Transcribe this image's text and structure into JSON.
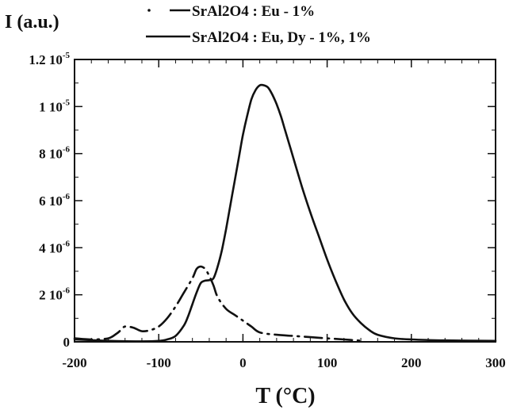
{
  "chart_data": {
    "type": "line",
    "title": "",
    "ylabel": "I (a.u.)",
    "xlabel": "T (°C)",
    "xlim": [
      -200,
      300
    ],
    "ylim": [
      0,
      1.2e-05
    ],
    "x_ticks": [
      {
        "value": -200,
        "label": "-200"
      },
      {
        "value": -100,
        "label": "-100"
      },
      {
        "value": 0,
        "label": "0"
      },
      {
        "value": 100,
        "label": "100"
      },
      {
        "value": 200,
        "label": "200"
      },
      {
        "value": 300,
        "label": "300"
      }
    ],
    "y_ticks": [
      {
        "value": 0,
        "mant": "0",
        "exp": ""
      },
      {
        "value": 2e-06,
        "mant": "2 10",
        "exp": "-6"
      },
      {
        "value": 4e-06,
        "mant": "4 10",
        "exp": "-6"
      },
      {
        "value": 6e-06,
        "mant": "6 10",
        "exp": "-6"
      },
      {
        "value": 8e-06,
        "mant": "8 10",
        "exp": "-6"
      },
      {
        "value": 1e-05,
        "mant": "1 10",
        "exp": "-5"
      },
      {
        "value": 1.2e-05,
        "mant": "1.2 10",
        "exp": "-5"
      }
    ],
    "legend_position": "top",
    "series": [
      {
        "name": "SrAl2O4 : Eu - 1%",
        "style": "dashed",
        "x": [
          -200,
          -180,
          -160,
          -150,
          -145,
          -140,
          -130,
          -120,
          -110,
          -100,
          -90,
          -80,
          -70,
          -60,
          -55,
          -50,
          -45,
          -40,
          -35,
          -30,
          -20,
          -10,
          0,
          10,
          20,
          40,
          60,
          80,
          100,
          120,
          140
        ],
        "y": [
          1.5e-07,
          1e-07,
          1.5e-07,
          3.5e-07,
          5e-07,
          6.5e-07,
          6e-07,
          4.5e-07,
          5e-07,
          6.5e-07,
          1e-06,
          1.5e-06,
          2.1e-06,
          2.7e-06,
          3.1e-06,
          3.2e-06,
          3.1e-06,
          2.8e-06,
          2.4e-06,
          1.9e-06,
          1.4e-06,
          1.15e-06,
          9e-07,
          6.5e-07,
          4e-07,
          3e-07,
          2.5e-07,
          2e-07,
          1.5e-07,
          1e-07,
          5e-08
        ]
      },
      {
        "name": "SrAl2O4 : Eu, Dy - 1%, 1%",
        "style": "solid",
        "x": [
          -200,
          -150,
          -120,
          -100,
          -90,
          -80,
          -70,
          -65,
          -60,
          -55,
          -50,
          -45,
          -40,
          -35,
          -30,
          -25,
          -20,
          -15,
          -10,
          -5,
          0,
          5,
          10,
          15,
          20,
          25,
          30,
          35,
          40,
          45,
          50,
          55,
          60,
          70,
          80,
          90,
          100,
          110,
          120,
          130,
          140,
          150,
          160,
          180,
          200,
          240,
          300
        ],
        "y": [
          1e-07,
          3e-08,
          2e-08,
          4e-08,
          1e-07,
          2.5e-07,
          7e-07,
          1.1e-06,
          1.6e-06,
          2.1e-06,
          2.5e-06,
          2.6e-06,
          2.62e-06,
          2.7e-06,
          3.2e-06,
          3.9e-06,
          4.8e-06,
          5.8e-06,
          6.8e-06,
          7.8e-06,
          8.8e-06,
          9.6e-06,
          1.03e-05,
          1.07e-05,
          1.09e-05,
          1.09e-05,
          1.08e-05,
          1.05e-05,
          1.01e-05,
          9.6e-06,
          9e-06,
          8.4e-06,
          7.8e-06,
          6.6e-06,
          5.5e-06,
          4.5e-06,
          3.5e-06,
          2.6e-06,
          1.8e-06,
          1.2e-06,
          8e-07,
          5e-07,
          3e-07,
          1.5e-07,
          1e-07,
          6e-08,
          4e-08
        ]
      }
    ]
  }
}
